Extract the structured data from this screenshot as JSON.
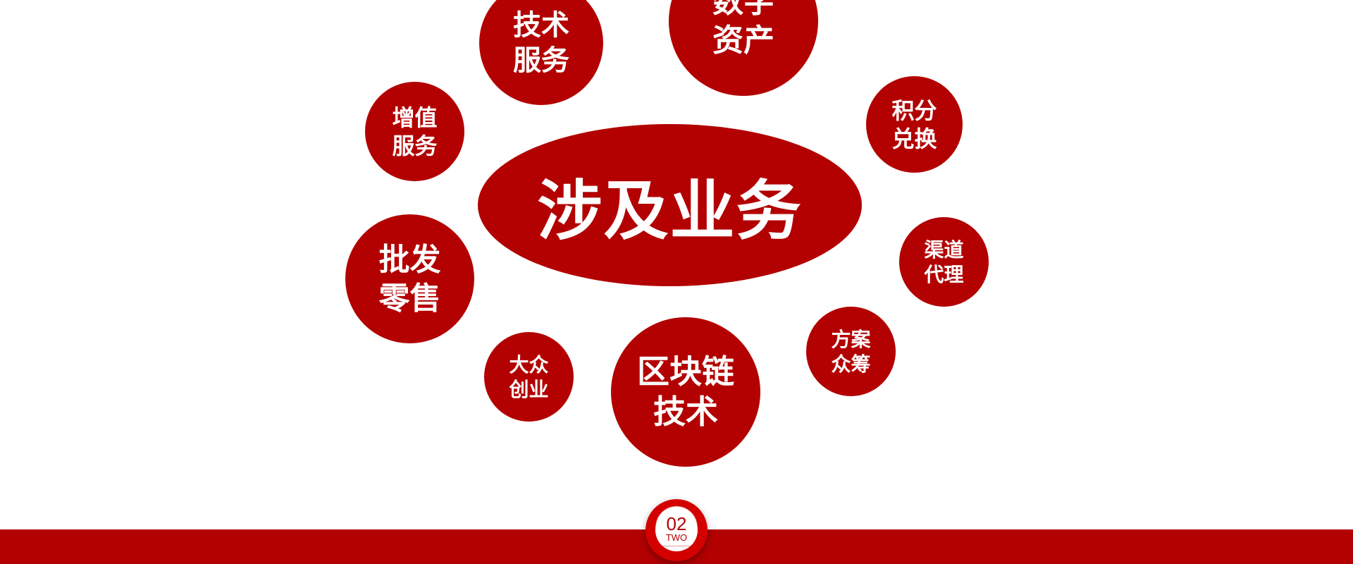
{
  "center": {
    "title": "涉及业务"
  },
  "bubbles": [
    {
      "id": "digital-assets",
      "label": "数字\n资产"
    },
    {
      "id": "tech-service",
      "label": "技术\n服务"
    },
    {
      "id": "value-added",
      "label": "增值\n服务"
    },
    {
      "id": "points-exchange",
      "label": "积分\n兑换"
    },
    {
      "id": "wholesale-retail",
      "label": "批发\n零售"
    },
    {
      "id": "channel-agent",
      "label": "渠道\n代理"
    },
    {
      "id": "mass-entrepreneurship",
      "label": "大众\n创业"
    },
    {
      "id": "blockchain",
      "label": "区块链\n技术"
    },
    {
      "id": "plan-crowdfunding",
      "label": "方案\n众筹"
    }
  ],
  "badge": {
    "number": "02",
    "word": "TWO"
  },
  "colors": {
    "primary": "#b30000",
    "badge_ring": "#d40000",
    "background": "#ffffff"
  }
}
